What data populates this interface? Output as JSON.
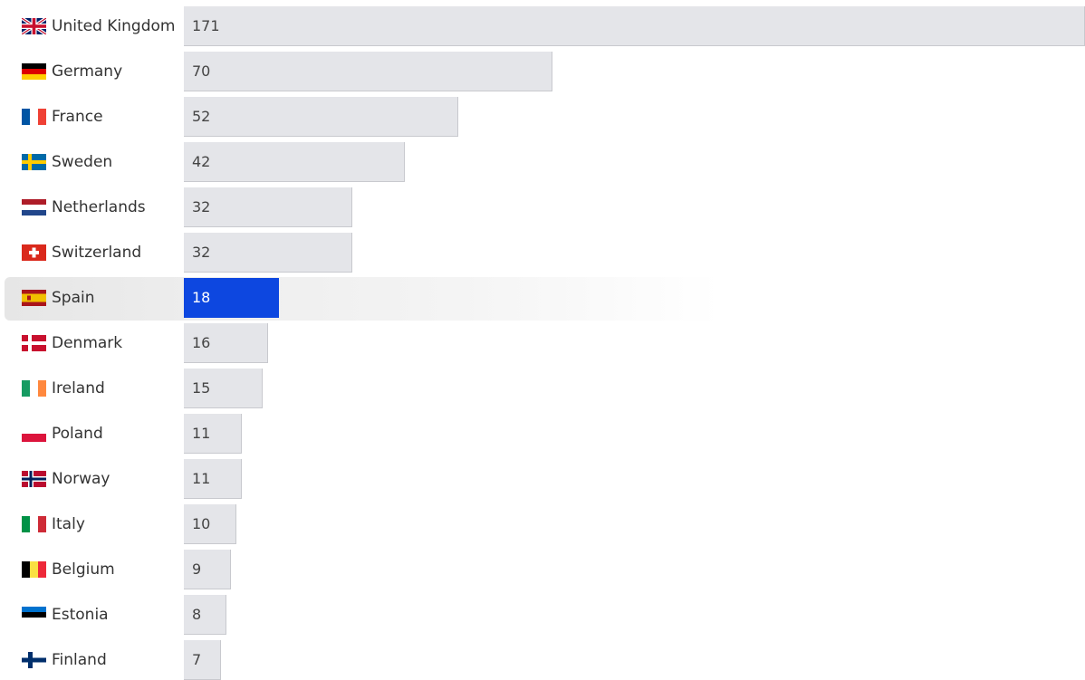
{
  "chart_data": {
    "type": "bar",
    "orientation": "horizontal",
    "categories": [
      "United Kingdom",
      "Germany",
      "France",
      "Sweden",
      "Netherlands",
      "Switzerland",
      "Spain",
      "Denmark",
      "Ireland",
      "Poland",
      "Norway",
      "Italy",
      "Belgium",
      "Estonia",
      "Finland"
    ],
    "values": [
      171,
      70,
      52,
      42,
      32,
      32,
      18,
      16,
      15,
      11,
      11,
      10,
      9,
      8,
      7
    ],
    "flags": [
      "gb-flag-icon",
      "de-flag-icon",
      "fr-flag-icon",
      "se-flag-icon",
      "nl-flag-icon",
      "ch-flag-icon",
      "es-flag-icon",
      "dk-flag-icon",
      "ie-flag-icon",
      "pl-flag-icon",
      "no-flag-icon",
      "it-flag-icon",
      "be-flag-icon",
      "ee-flag-icon",
      "fi-flag-icon"
    ],
    "highlighted": "Spain",
    "xlim": [
      0,
      171
    ],
    "grid": false,
    "legend": "none",
    "title": "",
    "xlabel": "",
    "ylabel": ""
  },
  "colors": {
    "bar": "#e4e5e9",
    "bar_highlight": "#0d47e0",
    "label_text": "#333333",
    "value_text": "#444444"
  }
}
